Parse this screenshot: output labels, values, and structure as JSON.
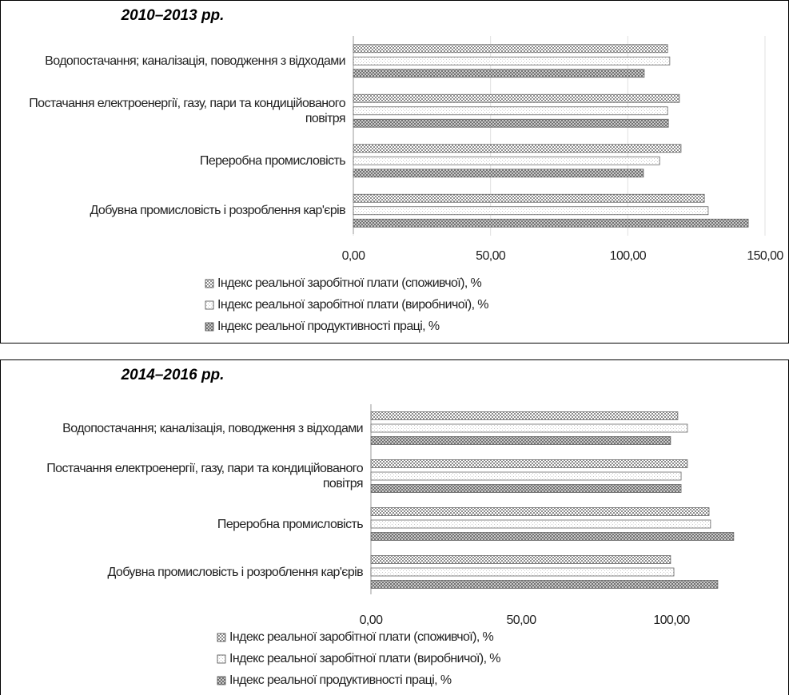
{
  "chart_data": [
    {
      "type": "hbar",
      "title": "2010–2013 рр.",
      "categories": [
        "Водопостачання; каналізація, поводження з відходами",
        "Постачання електроенергії, газу, пари та кондиційованого повітря",
        "Переробна промисловість",
        "Добувна промисловість і розроблення кар'єрів"
      ],
      "series": [
        {
          "name": "Індекс реальної заробітної плати (споживчої), %",
          "color": "#8c8c8c",
          "values": [
            114.5,
            118.8,
            119.4,
            127.9
          ]
        },
        {
          "name": "Індекс реальної заробітної плати (виробничої), %",
          "color": "#c8c8c8",
          "values": [
            115.3,
            114.5,
            111.6,
            129.3
          ]
        },
        {
          "name": "Індекс реальної продуктивності праці, %",
          "color": "#6e6e6e",
          "values": [
            106.0,
            114.8,
            105.7,
            143.9
          ]
        }
      ],
      "xlim": [
        0,
        150
      ],
      "xticks": [
        {
          "value": 0,
          "label": "0,00"
        },
        {
          "value": 50,
          "label": "50,00"
        },
        {
          "value": 100,
          "label": "100,00"
        },
        {
          "value": 150,
          "label": "150,00"
        }
      ],
      "grid": true
    },
    {
      "type": "hbar",
      "title": "2014–2016 рр.",
      "categories": [
        "Водопостачання; каналізація, поводження з відходами",
        "Постачання електроенергії, газу, пари та кондиційованого повітря",
        "Переробна промисловість",
        "Добувна промисловість і розроблення кар'єрів"
      ],
      "series": [
        {
          "name": "Індекс реальної заробітної плати (споживчої), %",
          "color": "#8c8c8c",
          "values": [
            102.1,
            105.3,
            112.5,
            99.7
          ]
        },
        {
          "name": "Індекс реальної заробітної плати (виробничої), %",
          "color": "#c8c8c8",
          "values": [
            105.3,
            103.2,
            113.0,
            100.8
          ]
        },
        {
          "name": "Індекс реальної продуктивності праці, %",
          "color": "#6e6e6e",
          "values": [
            99.7,
            103.2,
            120.7,
            115.4
          ]
        }
      ],
      "xlim": [
        0,
        125
      ],
      "xticks": [
        {
          "value": 0,
          "label": "0,00"
        },
        {
          "value": 50,
          "label": "50,00"
        },
        {
          "value": 100,
          "label": "100,00"
        }
      ],
      "grid": false
    }
  ]
}
